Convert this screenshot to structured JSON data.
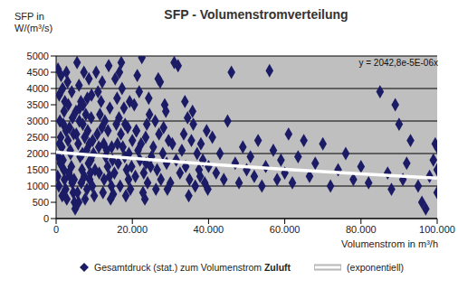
{
  "chart_data": {
    "type": "scatter",
    "title": "SFP - Volumenstromverteilung",
    "x_label": "Volumenstrom in m³/h",
    "y_label": "SFP in W/(m³/s)",
    "annotation": "y = 2042,8e-5E-06x",
    "xlim": [
      0,
      100000
    ],
    "xticks": [
      0,
      {
        "value": 20000,
        "label": "20.000"
      },
      {
        "value": 40000,
        "label": "40.000"
      },
      {
        "value": 60000,
        "label": "60.000"
      },
      {
        "value": 80000,
        "label": "80.000"
      },
      {
        "value": 100000,
        "label": "100.000"
      }
    ],
    "ylim": [
      0,
      5000
    ],
    "yticks": [
      0,
      500,
      1000,
      1500,
      2000,
      2500,
      3000,
      3500,
      4000,
      4500,
      5000
    ],
    "grid": true,
    "legend": "bottom",
    "series": [
      {
        "name": "Gesamtdruck (stat.) zum Volumenstrom Zuluft",
        "color": "#1c1c66",
        "marker": "diamond",
        "x": [
          500,
          800,
          1000,
          1200,
          1500,
          1800,
          2000,
          2200,
          2500,
          2800,
          3000,
          3200,
          3500,
          3800,
          4000,
          4200,
          4500,
          4800,
          5000,
          600,
          1300,
          1700,
          2100,
          2600,
          3100,
          3600,
          4100,
          4600,
          900,
          1600,
          5500,
          6000,
          6500,
          7000,
          7500,
          8000,
          8500,
          9000,
          9500,
          10000,
          5200,
          5800,
          6300,
          6800,
          7300,
          7800,
          8300,
          8800,
          9300,
          9800,
          5600,
          6600,
          7600,
          8600,
          9600,
          6100,
          7100,
          8100,
          9100,
          5900,
          10500,
          11000,
          11500,
          12000,
          12500,
          13000,
          13500,
          14000,
          14500,
          15000,
          10800,
          11300,
          11800,
          12300,
          12800,
          13300,
          13800,
          14300,
          14800,
          12100,
          15500,
          16000,
          16500,
          17000,
          17500,
          18000,
          18500,
          19000,
          19500,
          20000,
          15800,
          16300,
          16800,
          17300,
          17800,
          18300,
          18800,
          19300,
          19800,
          17100,
          20500,
          21000,
          21500,
          22000,
          22500,
          23000,
          23500,
          24000,
          24500,
          25000,
          20800,
          21800,
          22800,
          23800,
          24800,
          21300,
          22300,
          23300,
          24300,
          25500,
          26000,
          26500,
          27000,
          27500,
          28000,
          28500,
          29000,
          29500,
          30000,
          26200,
          27300,
          28200,
          29200,
          30500,
          31000,
          31500,
          32000,
          32500,
          26800,
          28800,
          33000,
          33500,
          34000,
          34500,
          35000,
          35500,
          36000,
          36500,
          37000,
          37500,
          38000,
          38500,
          39000,
          39500,
          40000,
          33800,
          35800,
          37800,
          39800,
          34800,
          41000,
          42000,
          43000,
          44000,
          45000,
          46000,
          47000,
          48000,
          49000,
          50000,
          51000,
          52000,
          53000,
          54000,
          55000,
          56000,
          57000,
          58000,
          59000,
          60000,
          61000,
          62000,
          63500,
          65000,
          66500,
          68000,
          70000,
          72000,
          74000,
          76000,
          78000,
          80000,
          82000,
          85000,
          87000,
          88000,
          90000,
          92000,
          95000,
          97000,
          98000,
          99000,
          99500,
          100000,
          100000,
          100000,
          93000,
          96000,
          89000,
          91000,
          700,
          1100,
          1900,
          2300,
          2700,
          3300,
          3700,
          4300,
          4700,
          5300,
          6200,
          6900,
          7400,
          8200,
          8700,
          9200,
          10200,
          11200,
          12600,
          13600,
          14100,
          14600,
          15300,
          16100,
          16600,
          18100,
          19100,
          21100,
          23600,
          400
        ],
        "values": [
          4600,
          3800,
          3000,
          2500,
          2200,
          1800,
          1500,
          1200,
          900,
          600,
          4200,
          3500,
          2800,
          2000,
          1600,
          1100,
          800,
          500,
          300,
          1900,
          4400,
          4000,
          3300,
          2700,
          2400,
          1300,
          3900,
          2600,
          2300,
          700,
          4800,
          4100,
          3600,
          2900,
          2500,
          2100,
          1700,
          1400,
          1000,
          700,
          3300,
          2300,
          1900,
          1500,
          4500,
          3200,
          2700,
          1200,
          3800,
          2000,
          800,
          1100,
          600,
          4300,
          2400,
          3000,
          3500,
          900,
          1800,
          500,
          4500,
          3900,
          3200,
          2800,
          2300,
          1900,
          1600,
          1300,
          1000,
          750,
          2600,
          1400,
          3600,
          800,
          3000,
          2100,
          4700,
          600,
          1800,
          4200,
          4300,
          3700,
          3100,
          2600,
          2200,
          1900,
          1500,
          1200,
          900,
          2400,
          2900,
          1700,
          1000,
          4000,
          3400,
          700,
          2800,
          3600,
          1600,
          4800,
          3500,
          2700,
          2100,
          1800,
          4950,
          1400,
          2500,
          1100,
          3200,
          1900,
          1300,
          3900,
          800,
          2900,
          1600,
          4400,
          2300,
          600,
          3700,
          2200,
          3000,
          1500,
          2600,
          1200,
          2000,
          3500,
          1700,
          2400,
          1100,
          900,
          4200,
          2800,
          900,
          2300,
          4800,
          1800,
          4700,
          1400,
          4300,
          3300,
          2100,
          2600,
          1600,
          3100,
          1200,
          2400,
          2900,
          1000,
          2000,
          1500,
          2300,
          1800,
          1100,
          2700,
          1600,
          3600,
          3300,
          1300,
          900,
          700,
          2500,
          1400,
          2000,
          1200,
          3000,
          4500,
          1700,
          1100,
          2200,
          1500,
          1900,
          1300,
          2400,
          1000,
          1600,
          4550,
          2100,
          1200,
          1800,
          1400,
          2600,
          1100,
          1900,
          2400,
          1300,
          1700,
          2300,
          1000,
          1500,
          2000,
          1200,
          1600,
          1100,
          3900,
          1400,
          900,
          2900,
          1700,
          1000,
          300,
          1300,
          1800,
          2300,
          1500,
          800,
          2200,
          2400,
          500,
          3500,
          1200,
          1000,
          1700,
          2900,
          3600,
          4500,
          1400,
          2100,
          3100,
          1200,
          2600,
          3400,
          2000,
          1300,
          3700,
          2300,
          3100,
          1500,
          2200,
          1200,
          2700,
          3400,
          2200,
          1400,
          2300,
          4500,
          2900,
          2000,
          2700,
          1700,
          1300
        ]
      },
      {
        "name": "(exponentiell)",
        "type": "line",
        "color": "#ffffff",
        "line_style": "solid",
        "x": [
          0,
          20000,
          40000,
          60000,
          80000,
          100000
        ],
        "values": [
          2043,
          1851,
          1675,
          1516,
          1372,
          1242
        ]
      }
    ]
  }
}
